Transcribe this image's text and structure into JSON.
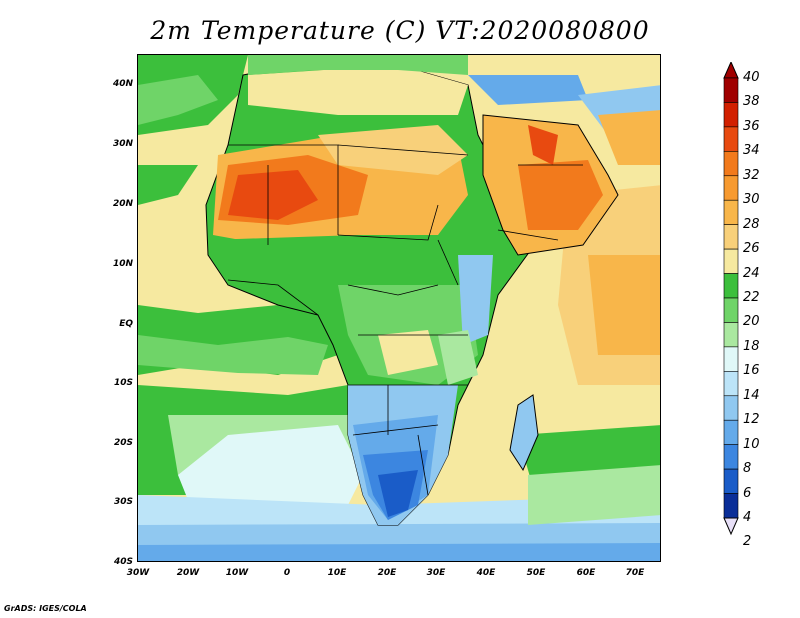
{
  "title": "2m Temperature (C) VT:2020080800",
  "credit": "GrADS: IGES/COLA",
  "map": {
    "lat_ticks": [
      "40N",
      "30N",
      "20N",
      "10N",
      "EQ",
      "10S",
      "20S",
      "30S",
      "40S"
    ],
    "lon_ticks": [
      "30W",
      "20W",
      "10W",
      "0",
      "10E",
      "20E",
      "30E",
      "40E",
      "50E",
      "60E",
      "70E"
    ],
    "lat_range": [
      -40,
      45
    ],
    "lon_range": [
      -30,
      75
    ]
  },
  "colorbar": {
    "levels": [
      "40",
      "38",
      "36",
      "34",
      "32",
      "30",
      "28",
      "26",
      "24",
      "22",
      "20",
      "18",
      "16",
      "14",
      "12",
      "10",
      "8",
      "6",
      "4",
      "2"
    ],
    "colors": [
      "#7a0000",
      "#a00000",
      "#d22000",
      "#e84a10",
      "#f27a1c",
      "#f79a30",
      "#f8b64a",
      "#f8d07a",
      "#f6e9a0",
      "#3cbf3c",
      "#6fd468",
      "#aae8a0",
      "#e0f8f8",
      "#bce4f8",
      "#90c8f0",
      "#64aaea",
      "#3c86e0",
      "#1a5cc8",
      "#0a2e98",
      "#e8e0f8"
    ],
    "top_arrow_color": "#a00000",
    "bottom_arrow_color": "#e8e0f8"
  }
}
